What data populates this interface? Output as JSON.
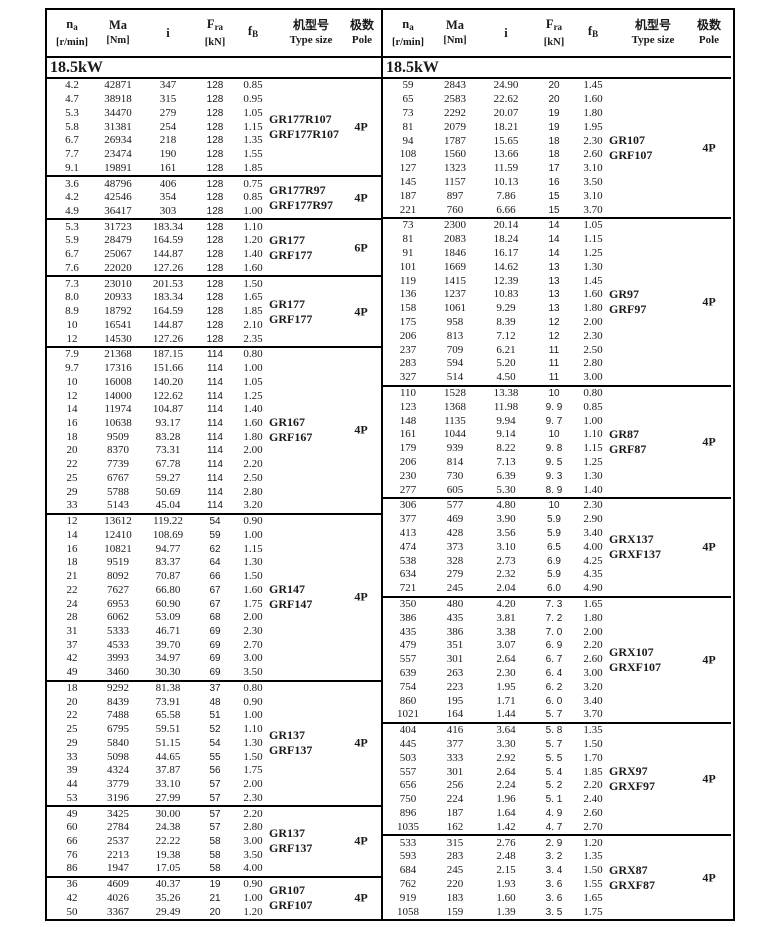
{
  "header": {
    "na_main": "n",
    "na_sub": "a",
    "na_unit": "[r/min]",
    "ma_main": "Ma",
    "ma_unit": "[Nm]",
    "i_main": "i",
    "fra_main": "F",
    "fra_sub": "ra",
    "fra_unit": "[kN]",
    "fb_main": "f",
    "fb_sub": "B",
    "type_cn": "机型号",
    "type_en": "Type size",
    "pole_cn": "极数",
    "pole_en": "Pole"
  },
  "tables": [
    {
      "section": "18.5kW",
      "groups": [
        {
          "type_lines": [
            "GR177R107",
            "GRF177R107"
          ],
          "pole": "4P",
          "rows": [
            [
              "4.2",
              "42871",
              "347",
              "128",
              "0.85"
            ],
            [
              "4.7",
              "38918",
              "315",
              "128",
              "0.95"
            ],
            [
              "5.3",
              "34470",
              "279",
              "128",
              "1.05"
            ],
            [
              "5.8",
              "31381",
              "254",
              "128",
              "1.15"
            ],
            [
              "6.7",
              "26934",
              "218",
              "128",
              "1.35"
            ],
            [
              "7.7",
              "23474",
              "190",
              "128",
              "1.55"
            ],
            [
              "9.1",
              "19891",
              "161",
              "128",
              "1.85"
            ]
          ]
        },
        {
          "type_lines": [
            "GR177R97",
            "GRF177R97"
          ],
          "pole": "4P",
          "rows": [
            [
              "3.6",
              "48796",
              "406",
              "128",
              "0.75"
            ],
            [
              "4.2",
              "42546",
              "354",
              "128",
              "0.85"
            ],
            [
              "4.9",
              "36417",
              "303",
              "128",
              "1.00"
            ]
          ]
        },
        {
          "type_lines": [
            "GR177",
            "GRF177"
          ],
          "pole": "6P",
          "rows": [
            [
              "5.3",
              "31723",
              "183.34",
              "128",
              "1.10"
            ],
            [
              "5.9",
              "28479",
              "164.59",
              "128",
              "1.20"
            ],
            [
              "6.7",
              "25067",
              "144.87",
              "128",
              "1.40"
            ],
            [
              "7.6",
              "22020",
              "127.26",
              "128",
              "1.60"
            ]
          ]
        },
        {
          "type_lines": [
            "GR177",
            "GRF177"
          ],
          "pole": "4P",
          "rows": [
            [
              "7.3",
              "23010",
              "201.53",
              "128",
              "1.50"
            ],
            [
              "8.0",
              "20933",
              "183.34",
              "128",
              "1.65"
            ],
            [
              "8.9",
              "18792",
              "164.59",
              "128",
              "1.85"
            ],
            [
              "10",
              "16541",
              "144.87",
              "128",
              "2.10"
            ],
            [
              "12",
              "14530",
              "127.26",
              "128",
              "2.35"
            ]
          ]
        },
        {
          "type_lines": [
            "GR167",
            "GRF167"
          ],
          "pole": "4P",
          "rows": [
            [
              "7.9",
              "21368",
              "187.15",
              "114",
              "0.80"
            ],
            [
              "9.7",
              "17316",
              "151.66",
              "114",
              "1.00"
            ],
            [
              "10",
              "16008",
              "140.20",
              "114",
              "1.05"
            ],
            [
              "12",
              "14000",
              "122.62",
              "114",
              "1.25"
            ],
            [
              "14",
              "11974",
              "104.87",
              "114",
              "1.40"
            ],
            [
              "16",
              "10638",
              "93.17",
              "114",
              "1.60"
            ],
            [
              "18",
              "9509",
              "83.28",
              "114",
              "1.80"
            ],
            [
              "20",
              "8370",
              "73.31",
              "114",
              "2.00"
            ],
            [
              "22",
              "7739",
              "67.78",
              "114",
              "2.20"
            ],
            [
              "25",
              "6767",
              "59.27",
              "114",
              "2.50"
            ],
            [
              "29",
              "5788",
              "50.69",
              "114",
              "2.80"
            ],
            [
              "33",
              "5143",
              "45.04",
              "114",
              "3.20"
            ]
          ]
        },
        {
          "type_lines": [
            "GR147",
            "GRF147"
          ],
          "pole": "4P",
          "rows": [
            [
              "12",
              "13612",
              "119.22",
              "54",
              "0.90"
            ],
            [
              "14",
              "12410",
              "108.69",
              "59",
              "1.00"
            ],
            [
              "16",
              "10821",
              "94.77",
              "62",
              "1.15"
            ],
            [
              "18",
              "9519",
              "83.37",
              "64",
              "1.30"
            ],
            [
              "21",
              "8092",
              "70.87",
              "66",
              "1.50"
            ],
            [
              "22",
              "7627",
              "66.80",
              "67",
              "1.60"
            ],
            [
              "24",
              "6953",
              "60.90",
              "67",
              "1.75"
            ],
            [
              "28",
              "6062",
              "53.09",
              "68",
              "2.00"
            ],
            [
              "31",
              "5333",
              "46.71",
              "69",
              "2.30"
            ],
            [
              "37",
              "4533",
              "39.70",
              "69",
              "2.70"
            ],
            [
              "42",
              "3993",
              "34.97",
              "69",
              "3.00"
            ],
            [
              "49",
              "3460",
              "30.30",
              "69",
              "3.50"
            ]
          ]
        },
        {
          "type_lines": [
            "GR137",
            "GRF137"
          ],
          "pole": "4P",
          "rows": [
            [
              "18",
              "9292",
              "81.38",
              "37",
              "0.80"
            ],
            [
              "20",
              "8439",
              "73.91",
              "48",
              "0.90"
            ],
            [
              "22",
              "7488",
              "65.58",
              "51",
              "1.00"
            ],
            [
              "25",
              "6795",
              "59.51",
              "52",
              "1.10"
            ],
            [
              "29",
              "5840",
              "51.15",
              "54",
              "1.30"
            ],
            [
              "33",
              "5098",
              "44.65",
              "55",
              "1.50"
            ],
            [
              "39",
              "4324",
              "37.87",
              "56",
              "1.75"
            ],
            [
              "44",
              "3779",
              "33.10",
              "57",
              "2.00"
            ],
            [
              "53",
              "3196",
              "27.99",
              "57",
              "2.30"
            ]
          ]
        },
        {
          "type_lines": [
            "GR137",
            "GRF137"
          ],
          "pole": "4P",
          "rows": [
            [
              "49",
              "3425",
              "30.00",
              "57",
              "2.20"
            ],
            [
              "60",
              "2784",
              "24.38",
              "57",
              "2.80"
            ],
            [
              "66",
              "2537",
              "22.22",
              "58",
              "3.00"
            ],
            [
              "76",
              "2213",
              "19.38",
              "58",
              "3.50"
            ],
            [
              "86",
              "1947",
              "17.05",
              "58",
              "4.00"
            ]
          ]
        },
        {
          "type_lines": [
            "GR107",
            "GRF107"
          ],
          "pole": "4P",
          "rows": [
            [
              "36",
              "4609",
              "40.37",
              "19",
              "0.90"
            ],
            [
              "42",
              "4026",
              "35.26",
              "21",
              "1.00"
            ],
            [
              "50",
              "3367",
              "29.49",
              "20",
              "1.20"
            ]
          ]
        }
      ]
    },
    {
      "section": "18.5kW",
      "groups": [
        {
          "type_lines": [
            "GR107",
            "GRF107"
          ],
          "pole": "4P",
          "rows": [
            [
              "59",
              "2843",
              "24.90",
              "20",
              "1.45"
            ],
            [
              "65",
              "2583",
              "22.62",
              "20",
              "1.60"
            ],
            [
              "73",
              "2292",
              "20.07",
              "19",
              "1.80"
            ],
            [
              "81",
              "2079",
              "18.21",
              "19",
              "1.95"
            ],
            [
              "94",
              "1787",
              "15.65",
              "18",
              "2.30"
            ],
            [
              "108",
              "1560",
              "13.66",
              "18",
              "2.60"
            ],
            [
              "127",
              "1323",
              "11.59",
              "17",
              "3.10"
            ],
            [
              "145",
              "1157",
              "10.13",
              "16",
              "3.50"
            ],
            [
              "187",
              "897",
              "7.86",
              "15",
              "3.10"
            ],
            [
              "221",
              "760",
              "6.66",
              "15",
              "3.70"
            ]
          ]
        },
        {
          "type_lines": [
            "GR97",
            "GRF97"
          ],
          "pole": "4P",
          "rows": [
            [
              "73",
              "2300",
              "20.14",
              "14",
              "1.05"
            ],
            [
              "81",
              "2083",
              "18.24",
              "14",
              "1.15"
            ],
            [
              "91",
              "1846",
              "16.17",
              "14",
              "1.25"
            ],
            [
              "101",
              "1669",
              "14.62",
              "13",
              "1.30"
            ],
            [
              "119",
              "1415",
              "12.39",
              "13",
              "1.45"
            ],
            [
              "136",
              "1237",
              "10.83",
              "13",
              "1.60"
            ],
            [
              "158",
              "1061",
              "9.29",
              "13",
              "1.80"
            ],
            [
              "175",
              "958",
              "8.39",
              "12",
              "2.00"
            ],
            [
              "206",
              "813",
              "7.12",
              "12",
              "2.30"
            ],
            [
              "237",
              "709",
              "6.21",
              "11",
              "2.50"
            ],
            [
              "283",
              "594",
              "5.20",
              "11",
              "2.80"
            ],
            [
              "327",
              "514",
              "4.50",
              "11",
              "3.00"
            ]
          ]
        },
        {
          "type_lines": [
            "GR87",
            "GRF87"
          ],
          "pole": "4P",
          "rows": [
            [
              "110",
              "1528",
              "13.38",
              "10",
              "0.80"
            ],
            [
              "123",
              "1368",
              "11.98",
              "9. 9",
              "0.85"
            ],
            [
              "148",
              "1135",
              "9.94",
              "9. 7",
              "1.00"
            ],
            [
              "161",
              "1044",
              "9.14",
              "10",
              "1.10"
            ],
            [
              "179",
              "939",
              "8.22",
              "9. 8",
              "1.15"
            ],
            [
              "206",
              "814",
              "7.13",
              "9. 5",
              "1.25"
            ],
            [
              "230",
              "730",
              "6.39",
              "9. 3",
              "1.30"
            ],
            [
              "277",
              "605",
              "5.30",
              "8. 9",
              "1.40"
            ]
          ]
        },
        {
          "type_lines": [
            "GRX137",
            "GRXF137"
          ],
          "pole": "4P",
          "rows": [
            [
              "306",
              "577",
              "4.80",
              "10",
              "2.30"
            ],
            [
              "377",
              "469",
              "3.90",
              "5.9",
              "2.90"
            ],
            [
              "413",
              "428",
              "3.56",
              "5.9",
              "3.40"
            ],
            [
              "474",
              "373",
              "3.10",
              "6.5",
              "4.00"
            ],
            [
              "538",
              "328",
              "2.73",
              "6.9",
              "4.25"
            ],
            [
              "634",
              "279",
              "2.32",
              "5.9",
              "4.35"
            ],
            [
              "721",
              "245",
              "2.04",
              "6.0",
              "4.90"
            ]
          ]
        },
        {
          "type_lines": [
            "GRX107",
            "GRXF107"
          ],
          "pole": "4P",
          "rows": [
            [
              "350",
              "480",
              "4.20",
              "7. 3",
              "1.65"
            ],
            [
              "386",
              "435",
              "3.81",
              "7. 2",
              "1.80"
            ],
            [
              "435",
              "386",
              "3.38",
              "7. 0",
              "2.00"
            ],
            [
              "479",
              "351",
              "3.07",
              "6. 9",
              "2.20"
            ],
            [
              "557",
              "301",
              "2.64",
              "6. 7",
              "2.60"
            ],
            [
              "639",
              "263",
              "2.30",
              "6. 4",
              "3.00"
            ],
            [
              "754",
              "223",
              "1.95",
              "6. 2",
              "3.20"
            ],
            [
              "860",
              "195",
              "1.71",
              "6. 0",
              "3.40"
            ],
            [
              "1021",
              "164",
              "1.44",
              "5. 7",
              "3.70"
            ]
          ]
        },
        {
          "type_lines": [
            "GRX97",
            "GRXF97"
          ],
          "pole": "4P",
          "rows": [
            [
              "404",
              "416",
              "3.64",
              "5. 8",
              "1.35"
            ],
            [
              "445",
              "377",
              "3.30",
              "5. 7",
              "1.50"
            ],
            [
              "503",
              "333",
              "2.92",
              "5. 5",
              "1.70"
            ],
            [
              "557",
              "301",
              "2.64",
              "5. 4",
              "1.85"
            ],
            [
              "656",
              "256",
              "2.24",
              "5. 2",
              "2.20"
            ],
            [
              "750",
              "224",
              "1.96",
              "5. 1",
              "2.40"
            ],
            [
              "896",
              "187",
              "1.64",
              "4. 9",
              "2.60"
            ],
            [
              "1035",
              "162",
              "1.42",
              "4. 7",
              "2.70"
            ]
          ]
        },
        {
          "type_lines": [
            "GRX87",
            "GRXF87"
          ],
          "pole": "4P",
          "rows": [
            [
              "533",
              "315",
              "2.76",
              "2. 9",
              "1.20"
            ],
            [
              "593",
              "283",
              "2.48",
              "3. 2",
              "1.35"
            ],
            [
              "684",
              "245",
              "2.15",
              "3. 4",
              "1.50"
            ],
            [
              "762",
              "220",
              "1.93",
              "3. 6",
              "1.55"
            ],
            [
              "919",
              "183",
              "1.60",
              "3. 6",
              "1.65"
            ],
            [
              "1058",
              "159",
              "1.39",
              "3. 5",
              "1.75"
            ]
          ]
        }
      ]
    }
  ]
}
